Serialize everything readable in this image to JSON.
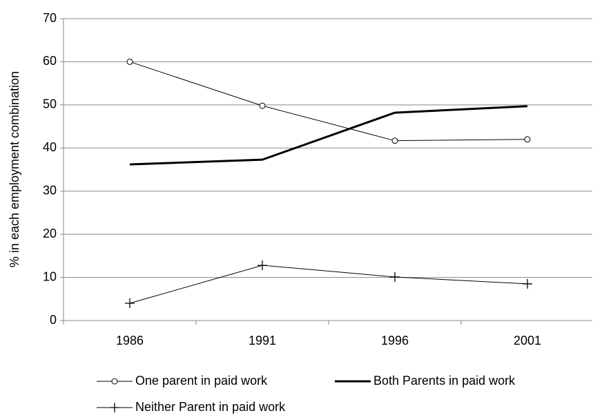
{
  "chart_data": {
    "type": "line",
    "y_label": "% in each employment combination",
    "categories": [
      "1986",
      "1991",
      "1996",
      "2001"
    ],
    "series": [
      {
        "name": "One parent in paid work",
        "color": "#000000",
        "marker": "circle",
        "width": 1,
        "values": [
          60,
          49.8,
          41.7,
          42.0
        ]
      },
      {
        "name": "Both Parents in paid work",
        "color": "#000000",
        "marker": "none",
        "width": 3,
        "values": [
          36.2,
          37.3,
          48.2,
          49.7
        ]
      },
      {
        "name": "Neither Parent in paid work",
        "color": "#000000",
        "marker": "plus",
        "width": 1,
        "values": [
          4.0,
          12.8,
          10.1,
          8.5
        ]
      }
    ],
    "ylim": [
      0,
      70
    ],
    "yticks": [
      0,
      10,
      20,
      30,
      40,
      50,
      60,
      70
    ],
    "grid": true
  }
}
